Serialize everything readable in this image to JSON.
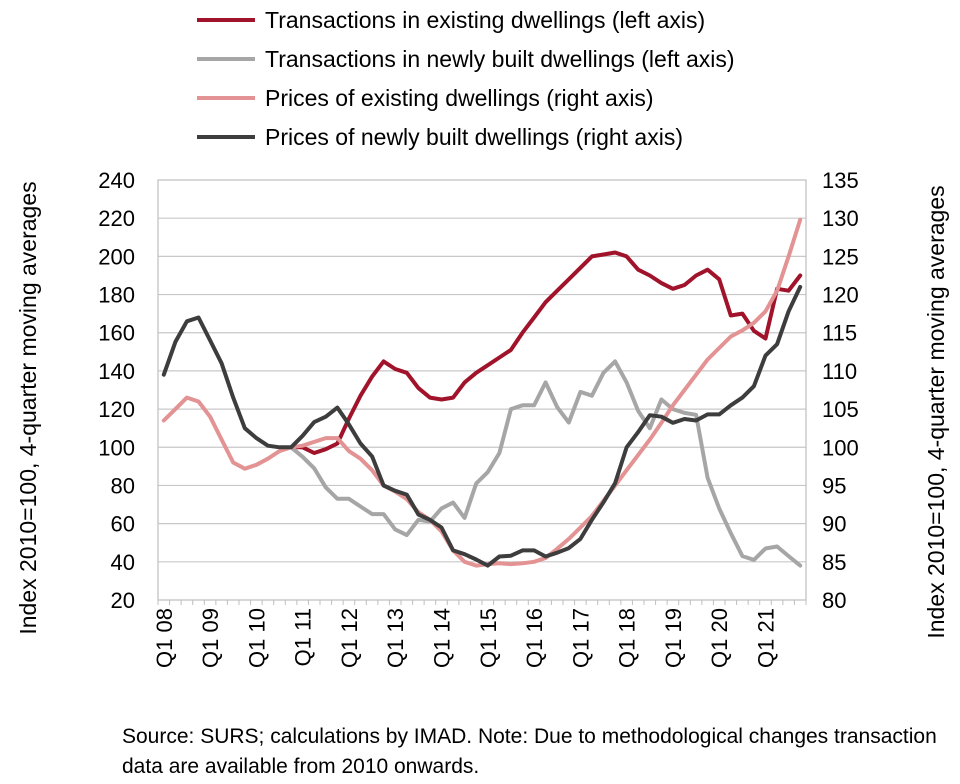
{
  "chart_data": {
    "type": "line",
    "x": [
      "Q1 08",
      "Q2 08",
      "Q3 08",
      "Q4 08",
      "Q1 09",
      "Q2 09",
      "Q3 09",
      "Q4 09",
      "Q1 10",
      "Q2 10",
      "Q3 10",
      "Q4 10",
      "Q1 11",
      "Q2 11",
      "Q3 11",
      "Q4 11",
      "Q1 12",
      "Q2 12",
      "Q3 12",
      "Q4 12",
      "Q1 13",
      "Q2 13",
      "Q3 13",
      "Q4 13",
      "Q1 14",
      "Q2 14",
      "Q3 14",
      "Q4 14",
      "Q1 15",
      "Q2 15",
      "Q3 15",
      "Q4 15",
      "Q1 16",
      "Q2 16",
      "Q3 16",
      "Q4 16",
      "Q1 17",
      "Q2 17",
      "Q3 17",
      "Q4 17",
      "Q1 18",
      "Q2 18",
      "Q3 18",
      "Q4 18",
      "Q1 19",
      "Q2 19",
      "Q3 19",
      "Q4 19",
      "Q1 20",
      "Q2 20",
      "Q3 20",
      "Q4 20",
      "Q1 21",
      "Q2 21",
      "Q3 21",
      "Q4 21"
    ],
    "x_tick_labels": [
      "Q1 08",
      "Q1 09",
      "Q1 10",
      "Q1 11",
      "Q1 12",
      "Q1 13",
      "Q1 14",
      "Q1 15",
      "Q1 16",
      "Q1 17",
      "Q1 18",
      "Q1 19",
      "Q1 20",
      "Q1 21"
    ],
    "ylabel_left": "Index 2010=100, 4-quarter moving averages",
    "ylabel_right": "Index 2010=100, 4-quarter moving averages",
    "ylim_left": [
      20,
      240
    ],
    "ylim_right": [
      80,
      135
    ],
    "yticks_left": [
      "20",
      "40",
      "60",
      "80",
      "100",
      "120",
      "140",
      "160",
      "180",
      "200",
      "220",
      "240"
    ],
    "yticks_right": [
      "80",
      "85",
      "90",
      "95",
      "100",
      "105",
      "110",
      "115",
      "120",
      "125",
      "130",
      "135"
    ],
    "grid": "horizontal",
    "legend_position": "top",
    "series": [
      {
        "name": "Transactions in existing dwellings (left axis)",
        "axis": "left",
        "color": "#a0132a",
        "values": [
          null,
          null,
          null,
          null,
          null,
          null,
          null,
          null,
          null,
          null,
          null,
          100,
          100,
          97,
          99,
          102,
          115,
          127,
          137,
          145,
          141,
          139,
          131,
          126,
          125,
          126,
          134,
          139,
          143,
          147,
          151,
          160,
          168,
          176,
          182,
          188,
          194,
          200,
          201,
          202,
          200,
          193,
          190,
          186,
          183,
          185,
          190,
          193,
          188,
          169,
          170,
          161,
          157,
          183,
          182,
          190
        ]
      },
      {
        "name": "Transactions in newly built dwellings (left axis)",
        "axis": "left",
        "color": "#a6a6a6",
        "values": [
          null,
          null,
          null,
          null,
          null,
          null,
          null,
          null,
          null,
          null,
          null,
          100,
          95,
          89,
          79,
          73,
          73,
          69,
          65,
          65,
          57,
          54,
          62,
          61,
          68,
          71,
          63,
          81,
          87,
          97,
          120,
          122,
          122,
          134,
          121,
          113,
          129,
          127,
          139,
          145,
          134,
          119,
          110,
          125,
          120,
          118,
          117,
          84,
          68,
          55,
          43,
          41,
          47,
          48,
          43,
          38
        ]
      },
      {
        "name": "Prices of existing dwellings (right axis)",
        "axis": "right",
        "color": "#e39393",
        "values": [
          103.5,
          105,
          106.5,
          106,
          104,
          101,
          98,
          97.2,
          97.7,
          98.5,
          99.5,
          100,
          100.2,
          100.7,
          101.2,
          101.2,
          99.5,
          98.5,
          97,
          95,
          94.2,
          93.2,
          91.5,
          90.5,
          89,
          86.5,
          85,
          84.5,
          84.7,
          84.8,
          84.7,
          84.8,
          85,
          85.5,
          86.7,
          88,
          89.5,
          91,
          93,
          95,
          97,
          99,
          101,
          103.2,
          105.5,
          107.5,
          109.5,
          111.5,
          113,
          114.5,
          115.3,
          116.3,
          117.8,
          120.5,
          125,
          129.8
        ]
      },
      {
        "name": "Prices of newly built dwellings (right axis)",
        "axis": "right",
        "color": "#3d3d3d",
        "values": [
          109.5,
          113.8,
          116.5,
          117,
          114,
          111,
          106.5,
          102.5,
          101.2,
          100.2,
          100,
          100,
          101.5,
          103.3,
          104,
          105.2,
          103,
          100.5,
          98.8,
          95,
          94.3,
          93.8,
          91.2,
          90.5,
          89.5,
          86.5,
          86,
          85.3,
          84.5,
          85.7,
          85.8,
          86.5,
          86.5,
          85.7,
          86.2,
          86.8,
          88,
          90.5,
          92.8,
          95.3,
          100,
          102,
          104.2,
          104,
          103.2,
          103.7,
          103.5,
          104.3,
          104.3,
          105.5,
          106.5,
          108,
          112,
          113.5,
          117.8,
          121
        ]
      }
    ]
  },
  "source_text": "Source: SURS; calculations by IMAD. Note: Due to methodological changes transaction data are available from 2010 onwards."
}
